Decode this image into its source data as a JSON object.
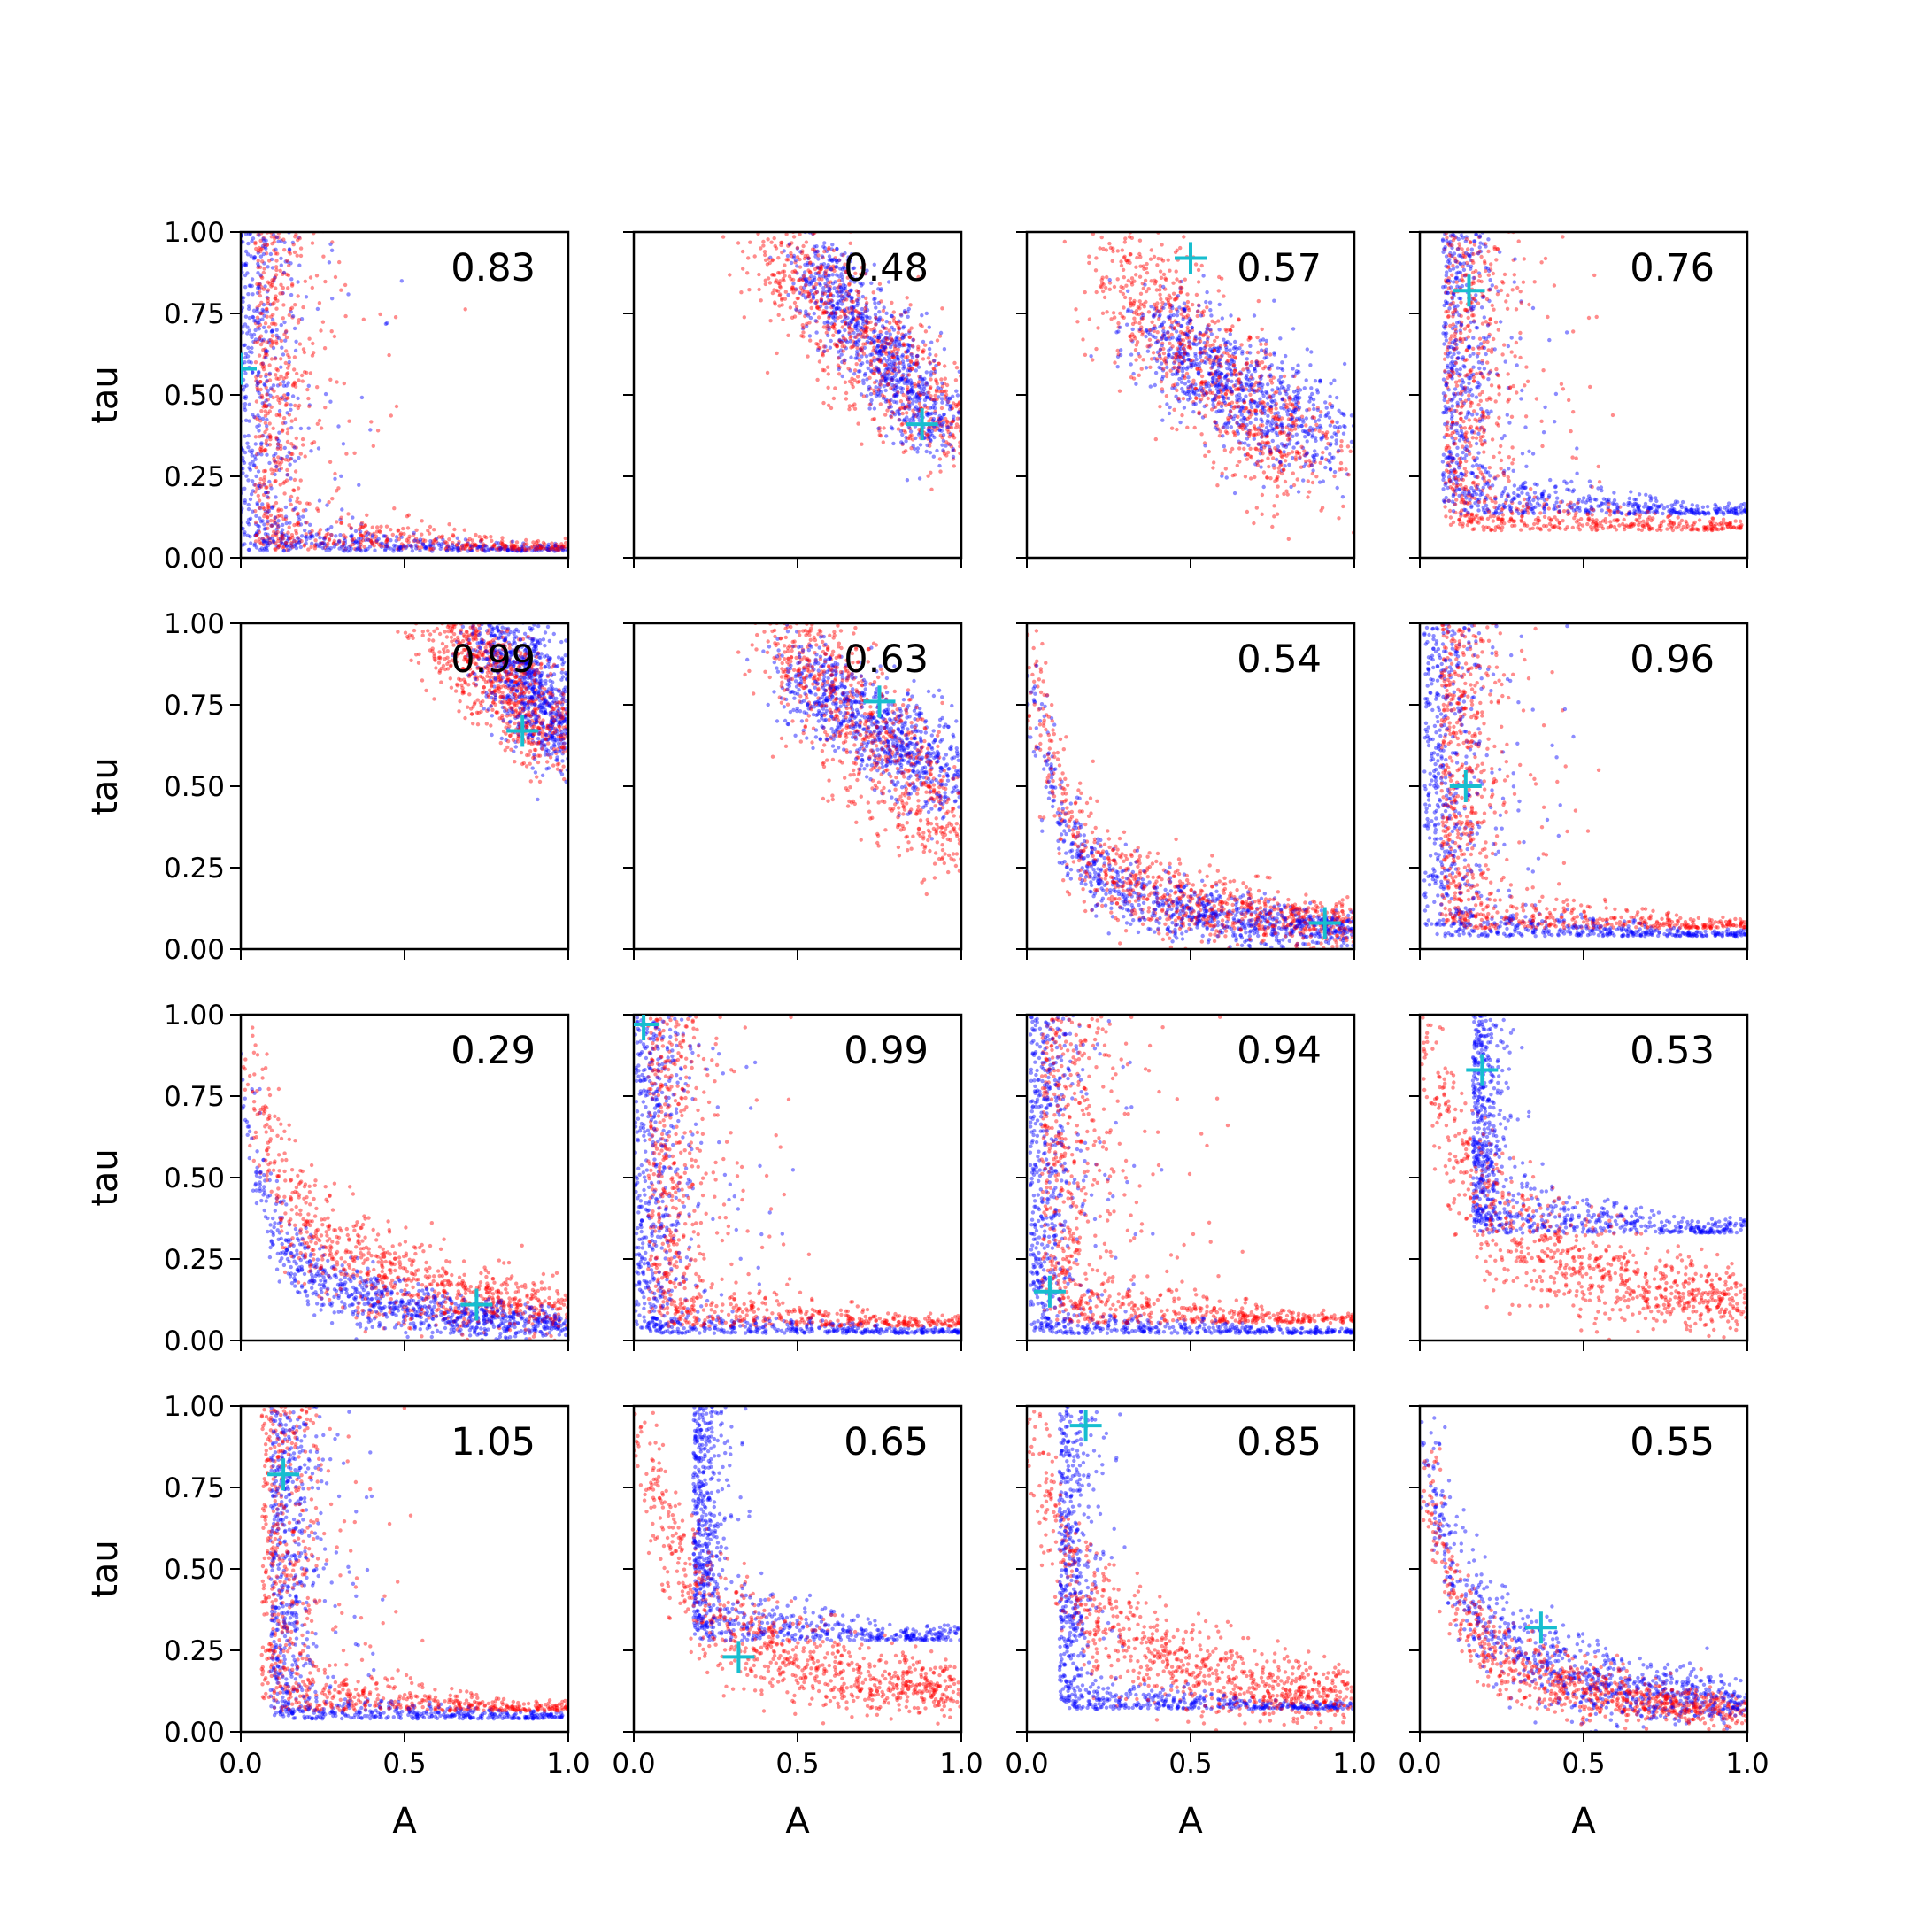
{
  "figure": {
    "series_colors": {
      "blue": "#0000ff",
      "red": "#ff0000",
      "marker": "#17becf"
    }
  },
  "chart_data": [
    {
      "type": "scatter",
      "row": 0,
      "col": 0,
      "annotation": "0.83",
      "xlabel": "",
      "ylabel": "tau",
      "xlim": [
        0,
        1
      ],
      "ylim": [
        0,
        1
      ],
      "xticks": [
        "0.0",
        "0.5",
        "1.0"
      ],
      "yticks": [
        "0.00",
        "0.25",
        "0.50",
        "0.75",
        "1.00"
      ],
      "show_xticklabels": false,
      "show_yticklabels": true,
      "marker": [
        0.0,
        0.58
      ],
      "blue_shape": "L",
      "blue_corner": [
        0.02,
        0.03
      ],
      "blue_spread": [
        0.12,
        0.05
      ],
      "red_shape": "L",
      "red_corner": [
        0.08,
        0.04
      ],
      "red_spread": [
        0.12,
        0.08
      ]
    },
    {
      "type": "scatter",
      "row": 0,
      "col": 1,
      "annotation": "0.48",
      "xlabel": "",
      "ylabel": "",
      "xlim": [
        0,
        1
      ],
      "ylim": [
        0,
        1
      ],
      "xticks": [
        "0.0",
        "0.5",
        "1.0"
      ],
      "yticks": [
        "0.00",
        "0.25",
        "0.50",
        "0.75",
        "1.00"
      ],
      "show_xticklabels": false,
      "show_yticklabels": false,
      "marker": [
        0.88,
        0.41
      ],
      "blue_shape": "band",
      "blue_band": [
        [
          0.55,
          0.95
        ],
        [
          0.9,
          0.38
        ]
      ],
      "blue_width": 0.06,
      "red_shape": "band",
      "red_band": [
        [
          0.42,
          1.02
        ],
        [
          0.95,
          0.35
        ]
      ],
      "red_width": 0.08
    },
    {
      "type": "scatter",
      "row": 0,
      "col": 2,
      "annotation": "0.57",
      "xlabel": "",
      "ylabel": "",
      "xlim": [
        0,
        1
      ],
      "ylim": [
        0,
        1
      ],
      "xticks": [
        "0.0",
        "0.5",
        "1.0"
      ],
      "yticks": [
        "0.00",
        "0.25",
        "0.50",
        "0.75",
        "1.00"
      ],
      "show_xticklabels": false,
      "show_yticklabels": false,
      "marker": [
        0.5,
        0.92
      ],
      "blue_shape": "band",
      "blue_band": [
        [
          0.38,
          0.9
        ],
        [
          0.7,
          0.35
        ]
      ],
      "blue_width": 0.08,
      "red_shape": "band",
      "red_band": [
        [
          0.28,
          0.85
        ],
        [
          0.9,
          0.25
        ]
      ],
      "red_width": 0.09
    },
    {
      "type": "scatter",
      "row": 0,
      "col": 3,
      "annotation": "0.76",
      "xlabel": "",
      "ylabel": "",
      "xlim": [
        0,
        1
      ],
      "ylim": [
        0,
        1
      ],
      "xticks": [
        "0.0",
        "0.5",
        "1.0"
      ],
      "yticks": [
        "0.00",
        "0.25",
        "0.50",
        "0.75",
        "1.00"
      ],
      "show_xticklabels": false,
      "show_yticklabels": false,
      "marker": [
        0.15,
        0.82
      ],
      "blue_shape": "L",
      "blue_corner": [
        0.1,
        0.15
      ],
      "blue_spread": [
        0.1,
        0.08
      ],
      "red_shape": "L",
      "red_corner": [
        0.12,
        0.1
      ],
      "red_spread": [
        0.15,
        0.08
      ]
    },
    {
      "type": "scatter",
      "row": 1,
      "col": 0,
      "annotation": "0.99",
      "xlabel": "",
      "ylabel": "tau",
      "xlim": [
        0,
        1
      ],
      "ylim": [
        0,
        1
      ],
      "xticks": [
        "0.0",
        "0.5",
        "1.0"
      ],
      "yticks": [
        "0.00",
        "0.25",
        "0.50",
        "0.75",
        "1.00"
      ],
      "show_xticklabels": false,
      "show_yticklabels": true,
      "marker": [
        0.86,
        0.67
      ],
      "blue_shape": "band",
      "blue_band": [
        [
          0.78,
          1.0
        ],
        [
          0.98,
          0.62
        ]
      ],
      "blue_width": 0.06,
      "red_shape": "band",
      "red_band": [
        [
          0.62,
          1.0
        ],
        [
          1.0,
          0.62
        ]
      ],
      "red_width": 0.07
    },
    {
      "type": "scatter",
      "row": 1,
      "col": 1,
      "annotation": "0.63",
      "xlabel": "",
      "ylabel": "",
      "xlim": [
        0,
        1
      ],
      "ylim": [
        0,
        1
      ],
      "xticks": [
        "0.0",
        "0.5",
        "1.0"
      ],
      "yticks": [
        "0.00",
        "0.25",
        "0.50",
        "0.75",
        "1.00"
      ],
      "show_xticklabels": false,
      "show_yticklabels": false,
      "marker": [
        0.75,
        0.76
      ],
      "blue_shape": "band",
      "blue_band": [
        [
          0.5,
          1.0
        ],
        [
          0.85,
          0.5
        ]
      ],
      "blue_width": 0.07,
      "red_shape": "band",
      "red_band": [
        [
          0.45,
          1.0
        ],
        [
          1.0,
          0.3
        ]
      ],
      "red_width": 0.08
    },
    {
      "type": "scatter",
      "row": 1,
      "col": 2,
      "annotation": "0.54",
      "xlabel": "",
      "ylabel": "",
      "xlim": [
        0,
        1
      ],
      "ylim": [
        0,
        1
      ],
      "xticks": [
        "0.0",
        "0.5",
        "1.0"
      ],
      "yticks": [
        "0.00",
        "0.25",
        "0.50",
        "0.75",
        "1.00"
      ],
      "show_xticklabels": false,
      "show_yticklabels": false,
      "marker": [
        0.91,
        0.08
      ],
      "blue_shape": "curve",
      "blue_k": 0.07,
      "blue_spread": 0.045,
      "red_shape": "curve",
      "red_k": 0.09,
      "red_spread": 0.06
    },
    {
      "type": "scatter",
      "row": 1,
      "col": 3,
      "annotation": "0.96",
      "xlabel": "",
      "ylabel": "",
      "xlim": [
        0,
        1
      ],
      "ylim": [
        0,
        1
      ],
      "xticks": [
        "0.0",
        "0.5",
        "1.0"
      ],
      "yticks": [
        "0.00",
        "0.25",
        "0.50",
        "0.75",
        "1.00"
      ],
      "show_xticklabels": false,
      "show_yticklabels": false,
      "marker": [
        0.14,
        0.5
      ],
      "blue_shape": "L",
      "blue_corner": [
        0.05,
        0.05
      ],
      "blue_spread": [
        0.12,
        0.05
      ],
      "red_shape": "L",
      "red_corner": [
        0.1,
        0.08
      ],
      "red_spread": [
        0.12,
        0.08
      ]
    },
    {
      "type": "scatter",
      "row": 2,
      "col": 0,
      "annotation": "0.29",
      "xlabel": "",
      "ylabel": "tau",
      "xlim": [
        0,
        1
      ],
      "ylim": [
        0,
        1
      ],
      "xticks": [
        "0.0",
        "0.5",
        "1.0"
      ],
      "yticks": [
        "0.00",
        "0.25",
        "0.50",
        "0.75",
        "1.00"
      ],
      "show_xticklabels": false,
      "show_yticklabels": true,
      "marker": [
        0.72,
        0.11
      ],
      "blue_shape": "curve",
      "blue_k": 0.06,
      "blue_spread": 0.04,
      "red_shape": "curve",
      "red_k": 0.12,
      "red_spread": 0.07
    },
    {
      "type": "scatter",
      "row": 2,
      "col": 1,
      "annotation": "0.99",
      "xlabel": "",
      "ylabel": "",
      "xlim": [
        0,
        1
      ],
      "ylim": [
        0,
        1
      ],
      "xticks": [
        "0.0",
        "0.5",
        "1.0"
      ],
      "yticks": [
        "0.00",
        "0.25",
        "0.50",
        "0.75",
        "1.00"
      ],
      "show_xticklabels": false,
      "show_yticklabels": false,
      "marker": [
        0.03,
        0.97
      ],
      "blue_shape": "L",
      "blue_corner": [
        0.04,
        0.03
      ],
      "blue_spread": [
        0.12,
        0.04
      ],
      "red_shape": "L",
      "red_corner": [
        0.08,
        0.06
      ],
      "red_spread": [
        0.12,
        0.08
      ]
    },
    {
      "type": "scatter",
      "row": 2,
      "col": 2,
      "annotation": "0.94",
      "xlabel": "",
      "ylabel": "",
      "xlim": [
        0,
        1
      ],
      "ylim": [
        0,
        1
      ],
      "xticks": [
        "0.0",
        "0.5",
        "1.0"
      ],
      "yticks": [
        "0.00",
        "0.25",
        "0.50",
        "0.75",
        "1.00"
      ],
      "show_xticklabels": false,
      "show_yticklabels": false,
      "marker": [
        0.07,
        0.15
      ],
      "blue_shape": "L",
      "blue_corner": [
        0.04,
        0.03
      ],
      "blue_spread": [
        0.1,
        0.04
      ],
      "red_shape": "L",
      "red_corner": [
        0.09,
        0.07
      ],
      "red_spread": [
        0.15,
        0.08
      ]
    },
    {
      "type": "scatter",
      "row": 2,
      "col": 3,
      "annotation": "0.53",
      "xlabel": "",
      "ylabel": "",
      "xlim": [
        0,
        1
      ],
      "ylim": [
        0,
        1
      ],
      "xticks": [
        "0.0",
        "0.5",
        "1.0"
      ],
      "yticks": [
        "0.00",
        "0.25",
        "0.50",
        "0.75",
        "1.00"
      ],
      "show_xticklabels": false,
      "show_yticklabels": false,
      "marker": [
        0.19,
        0.83
      ],
      "blue_shape": "L",
      "blue_corner": [
        0.18,
        0.35
      ],
      "blue_spread": [
        0.06,
        0.1
      ],
      "red_shape": "curve",
      "red_k": 0.15,
      "red_spread": 0.08
    },
    {
      "type": "scatter",
      "row": 3,
      "col": 0,
      "annotation": "1.05",
      "xlabel": "A",
      "ylabel": "tau",
      "xlim": [
        0,
        1
      ],
      "ylim": [
        0,
        1
      ],
      "xticks": [
        "0.0",
        "0.5",
        "1.0"
      ],
      "yticks": [
        "0.00",
        "0.25",
        "0.50",
        "0.75",
        "1.00"
      ],
      "show_xticklabels": true,
      "show_yticklabels": true,
      "marker": [
        0.13,
        0.79
      ],
      "blue_shape": "L",
      "blue_corner": [
        0.12,
        0.05
      ],
      "blue_spread": [
        0.1,
        0.05
      ],
      "red_shape": "L",
      "red_corner": [
        0.1,
        0.08
      ],
      "red_spread": [
        0.12,
        0.08
      ]
    },
    {
      "type": "scatter",
      "row": 3,
      "col": 1,
      "annotation": "0.65",
      "xlabel": "A",
      "ylabel": "",
      "xlim": [
        0,
        1
      ],
      "ylim": [
        0,
        1
      ],
      "xticks": [
        "0.0",
        "0.5",
        "1.0"
      ],
      "yticks": [
        "0.00",
        "0.25",
        "0.50",
        "0.75",
        "1.00"
      ],
      "show_xticklabels": true,
      "show_yticklabels": false,
      "marker": [
        0.32,
        0.23
      ],
      "blue_shape": "L",
      "blue_corner": [
        0.2,
        0.3
      ],
      "blue_spread": [
        0.06,
        0.1
      ],
      "red_shape": "curve",
      "red_k": 0.15,
      "red_spread": 0.07
    },
    {
      "type": "scatter",
      "row": 3,
      "col": 2,
      "annotation": "0.85",
      "xlabel": "A",
      "ylabel": "",
      "xlim": [
        0,
        1
      ],
      "ylim": [
        0,
        1
      ],
      "xticks": [
        "0.0",
        "0.5",
        "1.0"
      ],
      "yticks": [
        "0.00",
        "0.25",
        "0.50",
        "0.75",
        "1.00"
      ],
      "show_xticklabels": true,
      "show_yticklabels": false,
      "marker": [
        0.18,
        0.94
      ],
      "blue_shape": "L",
      "blue_corner": [
        0.12,
        0.08
      ],
      "blue_spread": [
        0.07,
        0.05
      ],
      "red_shape": "curve",
      "red_k": 0.13,
      "red_spread": 0.07
    },
    {
      "type": "scatter",
      "row": 3,
      "col": 3,
      "annotation": "0.55",
      "xlabel": "A",
      "ylabel": "",
      "xlim": [
        0,
        1
      ],
      "ylim": [
        0,
        1
      ],
      "xticks": [
        "0.0",
        "0.5",
        "1.0"
      ],
      "yticks": [
        "0.00",
        "0.25",
        "0.50",
        "0.75",
        "1.00"
      ],
      "show_xticklabels": true,
      "show_yticklabels": false,
      "marker": [
        0.37,
        0.32
      ],
      "blue_shape": "curve",
      "blue_k": 0.11,
      "blue_spread": 0.06,
      "red_shape": "curve",
      "red_k": 0.08,
      "red_spread": 0.045
    }
  ]
}
